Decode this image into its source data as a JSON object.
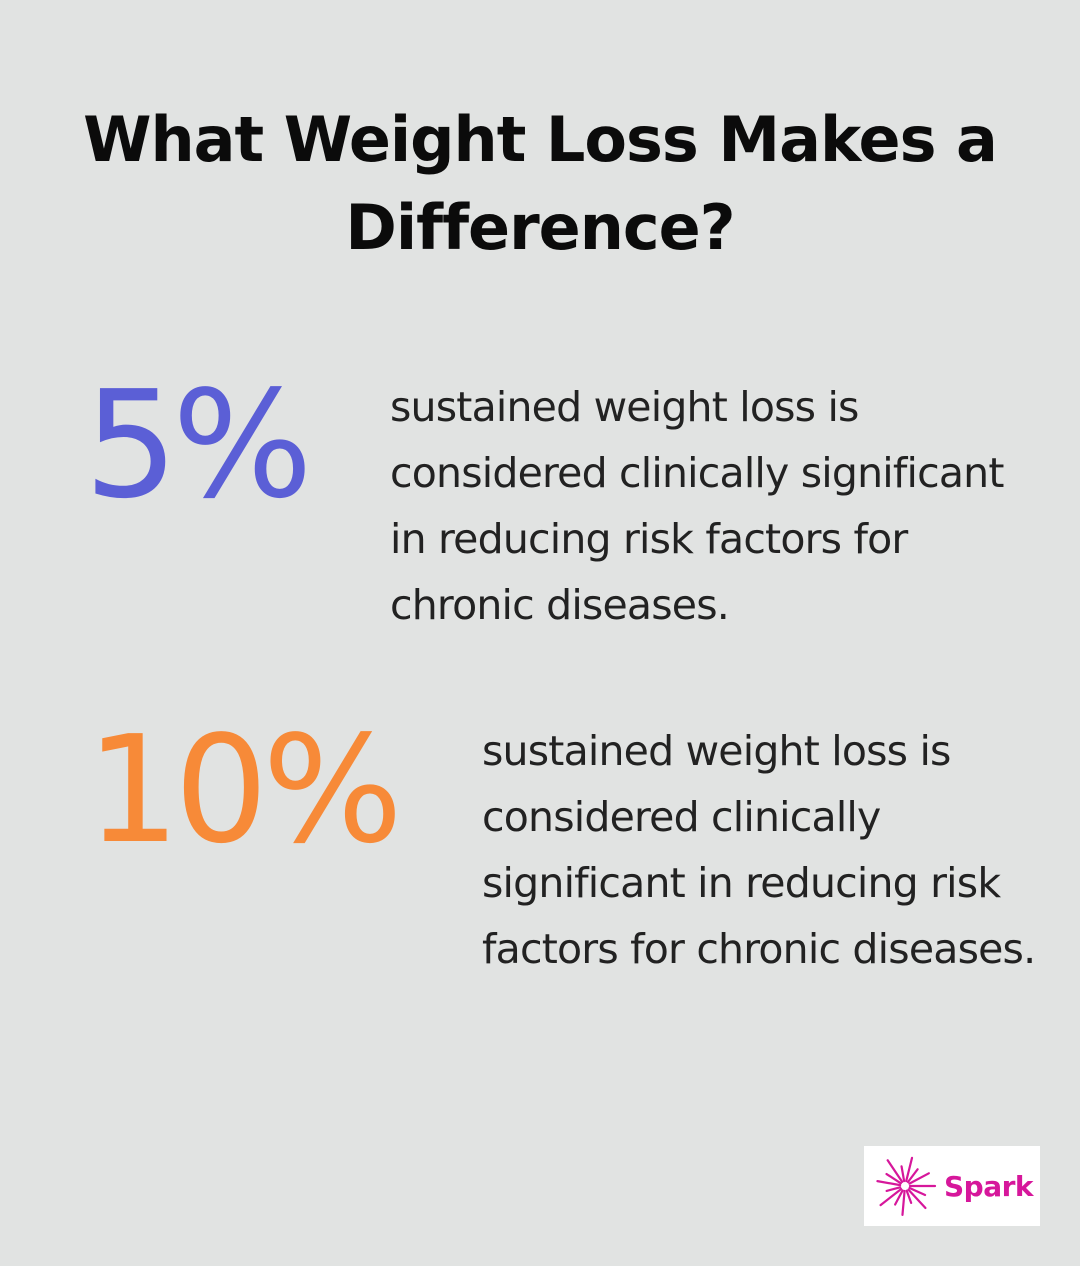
{
  "title": "What Weight Loss Makes a Difference?",
  "stats": [
    {
      "value": "5%",
      "text": "sustained weight loss is considered clinically significant in reducing risk factors for chronic diseases.",
      "color": "#5b5fd6"
    },
    {
      "value": "10%",
      "text": "sustained weight loss is considered clinically significant in reducing risk factors for chronic diseases.",
      "color": "#f78a38"
    }
  ],
  "logo": {
    "text": "Spark",
    "color": "#d6179b",
    "icon": "spark-burst-icon"
  }
}
